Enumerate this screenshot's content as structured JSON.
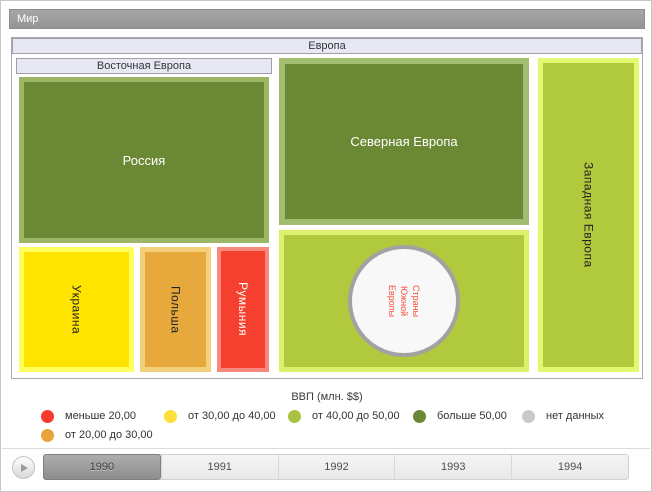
{
  "breadcrumb": {
    "world": "Мир"
  },
  "treemap": {
    "europe_label": "Европа",
    "eastern_label": "Восточная Европа",
    "regions": {
      "russia": {
        "label": "Россия",
        "fill": "#6b8834",
        "border": "#9cb566"
      },
      "ukraine": {
        "label": "Украина",
        "fill": "#ffe400",
        "border": "#feff5e"
      },
      "poland": {
        "label": "Польша",
        "fill": "#e7a83c",
        "border": "#f3d07c"
      },
      "romania": {
        "label": "Румыния",
        "fill": "#f6402f",
        "border": "#f9887c"
      },
      "northern": {
        "label": "Северная Европа",
        "fill": "#6b8834",
        "border": "#a2bc70"
      },
      "southern": {
        "lines": [
          "Страны",
          "Южной",
          "Европы"
        ],
        "fill": "#b1c93d",
        "border": "#def16d",
        "circle_fill": "#f8f8f8",
        "circle_border": "#a2a2a2",
        "text_color": "#f4503c"
      },
      "western": {
        "label": "Западная Европа",
        "fill": "#b1c93d",
        "border": "#e4f770"
      }
    }
  },
  "legend": {
    "title": "ВВП (млн. $$)",
    "items": [
      {
        "label": "меньше 20,00",
        "color": "#f8392d"
      },
      {
        "label": "от 20,00 до 30,00",
        "color": "#e8a33d"
      },
      {
        "label": "от 30,00 до 40,00",
        "color": "#fcdf3a"
      },
      {
        "label": "от 40,00 до 50,00",
        "color": "#a9c23f"
      },
      {
        "label": "больше 50,00",
        "color": "#6b8834"
      },
      {
        "label": "нет данных",
        "color": "#c9c9c9"
      }
    ]
  },
  "timeline": {
    "years": [
      "1990",
      "1991",
      "1992",
      "1993",
      "1994"
    ],
    "selected": "1990"
  }
}
